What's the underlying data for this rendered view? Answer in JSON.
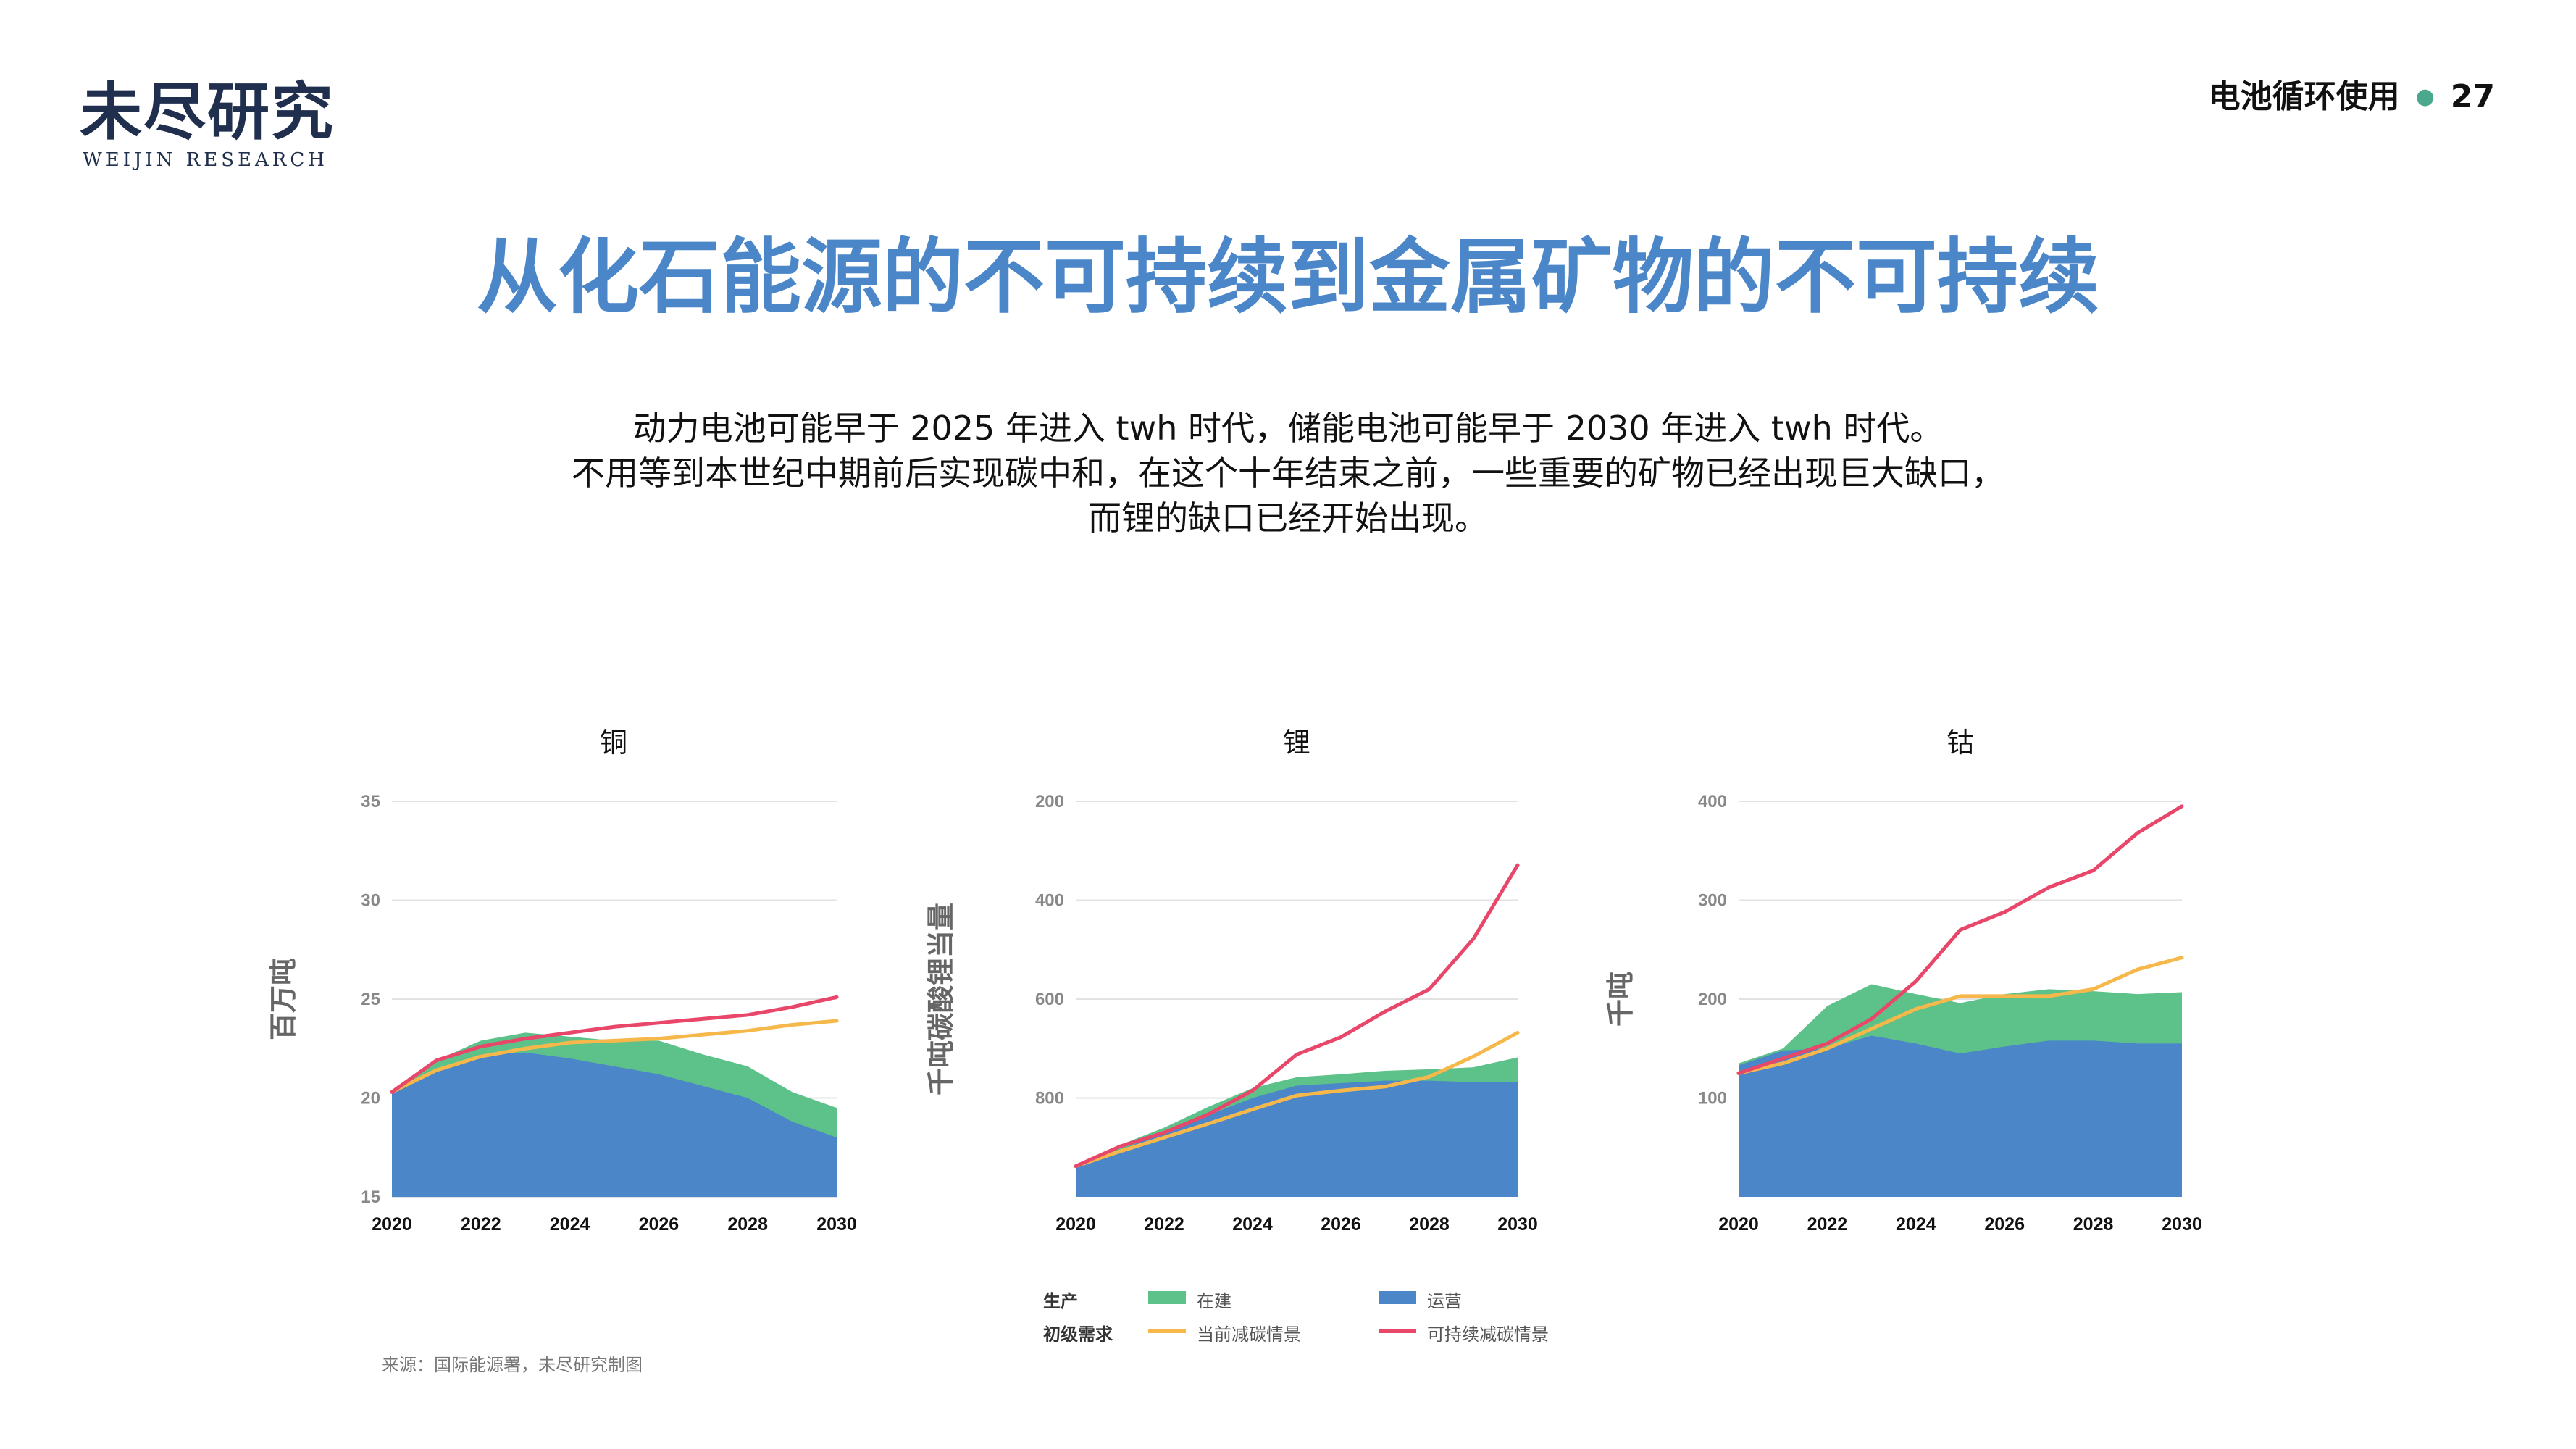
{
  "header": {
    "logo_cn": "未尽研究",
    "logo_en": "WEIJIN RESEARCH",
    "section": "电池循环使用",
    "page_number": "27"
  },
  "title": "从化石能源的不可持续到金属矿物的不可持续",
  "lead": {
    "line1": "动力电池可能早于 2025 年进入 twh 时代，储能电池可能早于 2030 年进入 twh 时代。",
    "line2": "不用等到本世纪中期前后实现碳中和，在这个十年结束之前，一些重要的矿物已经出现巨大缺口，",
    "line3": "而锂的缺口已经开始出现。"
  },
  "legend": {
    "production": "生产",
    "primary_demand": "初级需求",
    "under_construction": "在建",
    "operating": "运营",
    "current_scenario": "当前减碳情景",
    "sustainable_scenario": "可持续减碳情景"
  },
  "source": "来源：国际能源署，未尽研究制图",
  "colors": {
    "under_construction": "#5dc18a",
    "operating": "#4a86c8",
    "current_scenario": "#f7b84b",
    "sustainable_scenario": "#e8476a"
  },
  "chart_data": [
    {
      "type": "area",
      "title": "铜",
      "ylabel": "百万吨",
      "x": [
        2020,
        2021,
        2022,
        2023,
        2024,
        2025,
        2026,
        2027,
        2028,
        2029,
        2030
      ],
      "xticks": [
        "2020",
        "2022",
        "2024",
        "2026",
        "2028",
        "2030"
      ],
      "yticks": [
        "15",
        "20",
        "25",
        "30",
        "35"
      ],
      "ylim": [
        15,
        35
      ],
      "y_reversed": false,
      "series": [
        {
          "name": "运营",
          "kind": "area",
          "values": [
            20.2,
            21.4,
            22.2,
            22.3,
            22.0,
            21.6,
            21.2,
            20.6,
            20.0,
            18.8,
            18.0
          ]
        },
        {
          "name": "在建",
          "kind": "area",
          "values": [
            20.4,
            21.9,
            22.9,
            23.3,
            23.1,
            22.9,
            22.9,
            22.2,
            21.6,
            20.3,
            19.5
          ]
        },
        {
          "name": "当前减碳情景",
          "kind": "line",
          "values": [
            20.3,
            21.4,
            22.1,
            22.5,
            22.8,
            22.9,
            23.0,
            23.2,
            23.4,
            23.7,
            23.9
          ]
        },
        {
          "name": "可持续减碳情景",
          "kind": "line",
          "values": [
            20.3,
            21.9,
            22.6,
            23.0,
            23.3,
            23.6,
            23.8,
            24.0,
            24.2,
            24.6,
            25.1
          ]
        }
      ]
    },
    {
      "type": "area",
      "title": "锂",
      "ylabel": "千吨碳酸锂当量",
      "x": [
        2020,
        2021,
        2022,
        2023,
        2024,
        2025,
        2026,
        2027,
        2028,
        2029,
        2030
      ],
      "xticks": [
        "2020",
        "2022",
        "2024",
        "2026",
        "2028",
        "2030"
      ],
      "yticks": [
        "200",
        "400",
        "600",
        "800"
      ],
      "ylim": [
        200,
        1000
      ],
      "y_reversed": true,
      "series": [
        {
          "name": "运营",
          "kind": "area",
          "values": [
            940,
            905,
            870,
            835,
            800,
            775,
            770,
            765,
            765,
            768,
            768
          ]
        },
        {
          "name": "在建",
          "kind": "area",
          "values": [
            938,
            895,
            860,
            818,
            780,
            758,
            752,
            745,
            742,
            738,
            718
          ]
        },
        {
          "name": "当前减碳情景",
          "kind": "line",
          "values": [
            938,
            908,
            880,
            852,
            823,
            795,
            785,
            777,
            757,
            716,
            668
          ]
        },
        {
          "name": "可持续减碳情景",
          "kind": "line",
          "values": [
            938,
            898,
            870,
            833,
            785,
            712,
            677,
            625,
            580,
            478,
            329
          ]
        }
      ]
    },
    {
      "type": "area",
      "title": "钴",
      "ylabel": "千吨",
      "x": [
        2020,
        2021,
        2022,
        2023,
        2024,
        2025,
        2026,
        2027,
        2028,
        2029,
        2030
      ],
      "xticks": [
        "2020",
        "2022",
        "2024",
        "2026",
        "2028",
        "2030"
      ],
      "yticks": [
        "100",
        "200",
        "300",
        "400"
      ],
      "ylim": [
        0,
        400
      ],
      "y_reversed": false,
      "series": [
        {
          "name": "运营",
          "kind": "area",
          "values": [
            133,
            148,
            150,
            163,
            155,
            145,
            152,
            158,
            158,
            155,
            155
          ]
        },
        {
          "name": "在建",
          "kind": "area",
          "values": [
            135,
            150,
            193,
            215,
            205,
            196,
            205,
            210,
            208,
            205,
            207
          ]
        },
        {
          "name": "当前减碳情景",
          "kind": "line",
          "values": [
            125,
            135,
            150,
            170,
            190,
            203,
            203,
            203,
            210,
            230,
            242
          ]
        },
        {
          "name": "可持续减碳情景",
          "kind": "line",
          "values": [
            125,
            140,
            155,
            180,
            218,
            270,
            288,
            313,
            330,
            368,
            395
          ]
        }
      ]
    }
  ]
}
